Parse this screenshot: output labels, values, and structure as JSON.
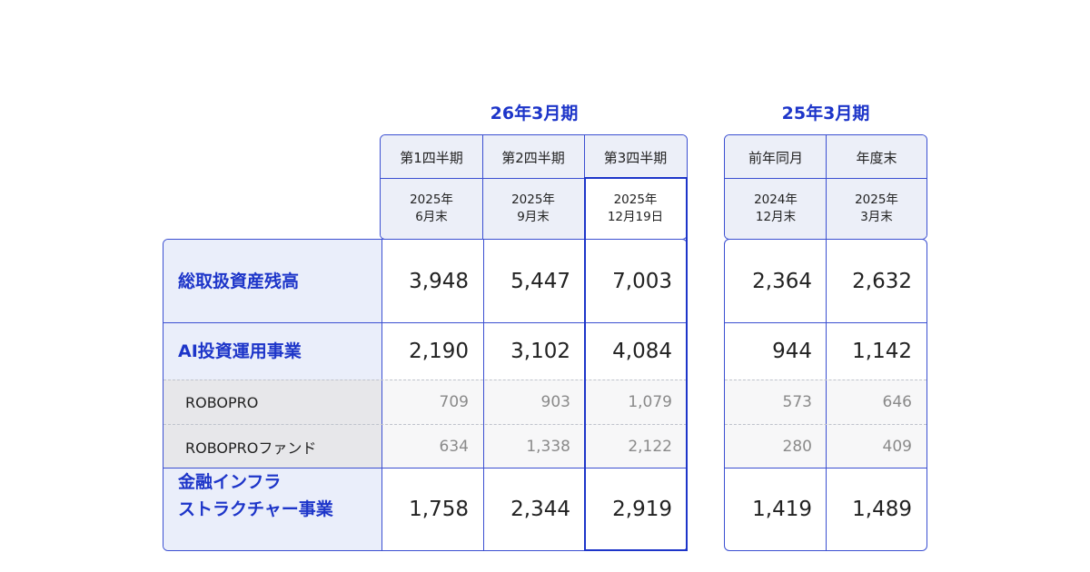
{
  "groups": {
    "current": {
      "title": "26年3月期",
      "columns": [
        {
          "header": "第1四半期",
          "year": "2025年",
          "date": "6月末"
        },
        {
          "header": "第2四半期",
          "year": "2025年",
          "date": "9月末"
        },
        {
          "header": "第3四半期",
          "year": "2025年",
          "date": "12月19日"
        }
      ]
    },
    "previous": {
      "title": "25年3月期",
      "columns": [
        {
          "header": "前年同月",
          "year": "2024年",
          "date": "12月末"
        },
        {
          "header": "年度末",
          "year": "2025年",
          "date": "3月末"
        }
      ]
    }
  },
  "rows": [
    {
      "label": "総取扱資産残高",
      "current": [
        "3,948",
        "5,447",
        "7,003"
      ],
      "previous": [
        "2,364",
        "2,632"
      ]
    },
    {
      "label": "AI投資運用事業",
      "current": [
        "2,190",
        "3,102",
        "4,084"
      ],
      "previous": [
        "944",
        "1,142"
      ]
    },
    {
      "label": "ROBOPRO",
      "current": [
        "709",
        "903",
        "1,079"
      ],
      "previous": [
        "573",
        "646"
      ]
    },
    {
      "label": "ROBOPROファンド",
      "current": [
        "634",
        "1,338",
        "2,122"
      ],
      "previous": [
        "280",
        "409"
      ]
    },
    {
      "label_line1": "金融インフラ",
      "label_line2": "ストラクチャー事業",
      "current": [
        "1,758",
        "2,344",
        "2,919"
      ],
      "previous": [
        "1,419",
        "1,489"
      ]
    }
  ],
  "colors": {
    "accent": "#1d35c9",
    "header_bg": "#eceff8",
    "sub_row_bg": "#e7e7ea"
  }
}
